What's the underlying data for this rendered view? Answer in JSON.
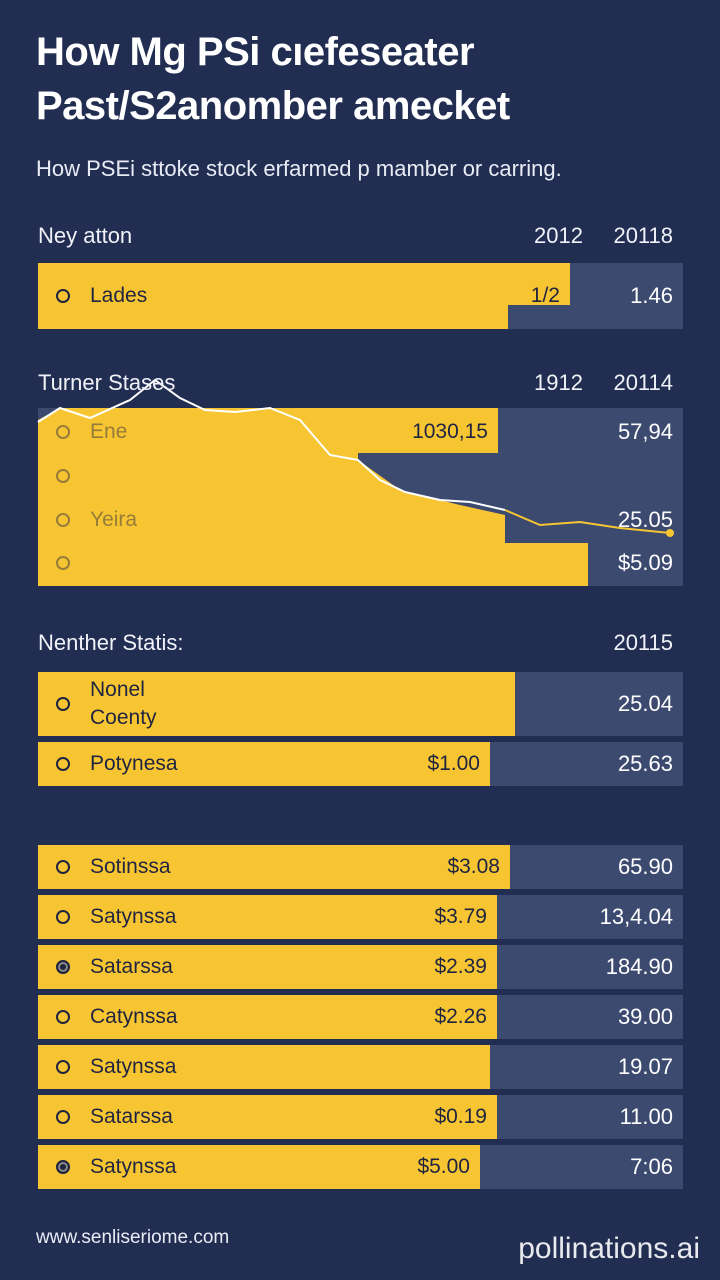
{
  "header": {
    "title": [
      "How Mg PSi cıefeseater",
      "Past/S2anomber amecket"
    ],
    "subtitle": "How PSEi sttoke stock erfarmed p mamber or carring."
  },
  "sections": [
    {
      "label": "Ney atton",
      "columns": [
        "2012",
        "20118"
      ],
      "rows": [
        {
          "label": [
            "Lades"
          ],
          "a": "1/2",
          "b": "1.46"
        }
      ]
    },
    {
      "label": "Turner Stases",
      "columns": [
        "1912",
        "20114"
      ],
      "rows": [
        {
          "label": [
            "Ene"
          ],
          "a": "1030,15",
          "b": "57,94"
        },
        {},
        {
          "label": [
            "Yeira"
          ],
          "b": "25.05"
        },
        {
          "b": "$5.09"
        }
      ]
    },
    {
      "label": "Nenther Statis:",
      "columns": [
        "20115"
      ],
      "rows": [
        {
          "label": [
            "Nonel",
            "Coenty"
          ],
          "b": "25.04"
        },
        {
          "label": [
            "Potynesa"
          ],
          "a": "$1.00",
          "b": "25.63"
        }
      ]
    },
    {
      "rows": [
        {
          "label": [
            "Sotinssa"
          ],
          "a": "$3.08",
          "b": "65.90"
        },
        {
          "label": [
            "Satynssa"
          ],
          "a": "$3.79",
          "b": "13,4.04"
        },
        {
          "label": [
            "Satarssa"
          ],
          "a": "$2.39",
          "b": "184.90",
          "selected": true
        },
        {
          "label": [
            "Catynssa"
          ],
          "a": "$2.26",
          "b": "39.00"
        },
        {
          "label": [
            "Satynssa"
          ],
          "b": "19.07"
        },
        {
          "label": [
            "Satarssa"
          ],
          "a": "$0.19",
          "b": "11.00"
        },
        {
          "label": [
            "Satynssa"
          ],
          "a": "$5.00",
          "b": "7:06",
          "selected": true
        }
      ]
    }
  ],
  "footer": {
    "url": "www.senliseriome.com",
    "watermark": "pollinations.ai"
  }
}
